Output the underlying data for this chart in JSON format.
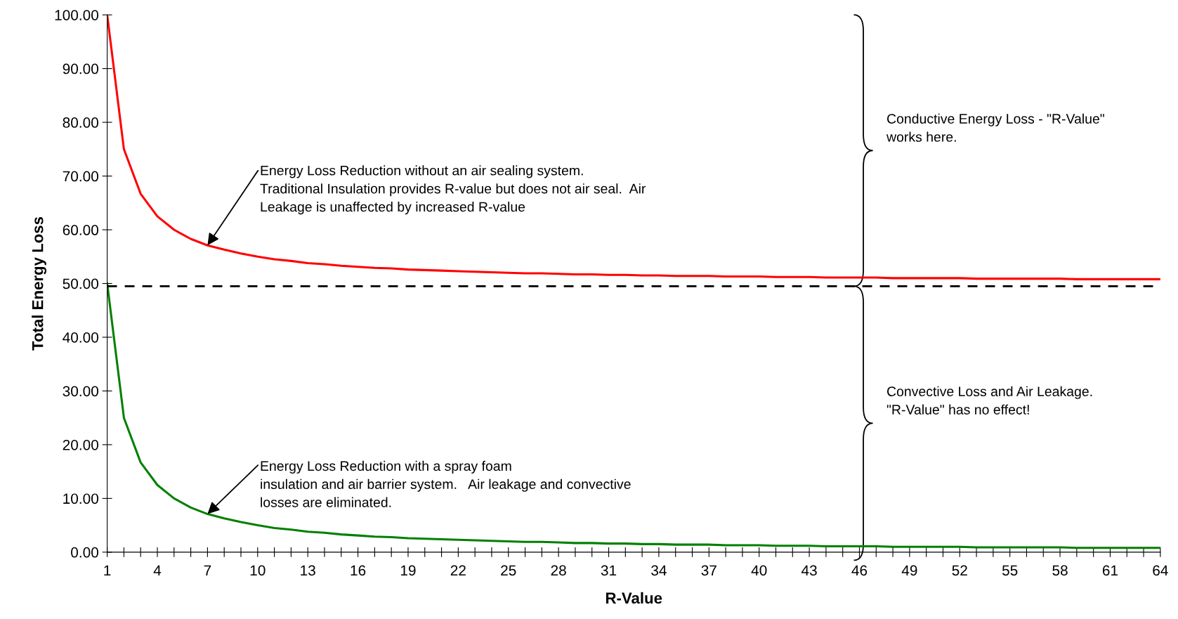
{
  "chart_data": {
    "type": "line",
    "xlabel": "R-Value",
    "ylabel": "Total Energy Loss",
    "x": [
      1,
      2,
      3,
      4,
      5,
      6,
      7,
      8,
      9,
      10,
      11,
      12,
      13,
      14,
      15,
      16,
      17,
      18,
      19,
      20,
      21,
      22,
      23,
      24,
      25,
      26,
      27,
      28,
      29,
      30,
      31,
      32,
      33,
      34,
      35,
      36,
      37,
      38,
      39,
      40,
      41,
      42,
      43,
      44,
      45,
      46,
      47,
      48,
      49,
      50,
      51,
      52,
      53,
      54,
      55,
      56,
      57,
      58,
      59,
      60,
      61,
      62,
      63,
      64
    ],
    "series": [
      {
        "color": "#ff0000",
        "values": [
          100,
          75,
          66.7,
          62.5,
          60,
          58.3,
          57.1,
          56.3,
          55.6,
          55,
          54.5,
          54.2,
          53.8,
          53.6,
          53.3,
          53.1,
          52.9,
          52.8,
          52.6,
          52.5,
          52.4,
          52.3,
          52.2,
          52.1,
          52,
          51.9,
          51.9,
          51.8,
          51.7,
          51.7,
          51.6,
          51.6,
          51.5,
          51.5,
          51.4,
          51.4,
          51.4,
          51.3,
          51.3,
          51.3,
          51.2,
          51.2,
          51.2,
          51.1,
          51.1,
          51.1,
          51.1,
          51,
          51,
          51,
          51,
          51,
          50.9,
          50.9,
          50.9,
          50.9,
          50.9,
          50.9,
          50.8,
          50.8,
          50.8,
          50.8,
          50.8,
          50.8
        ]
      },
      {
        "color": "#008000",
        "values": [
          50,
          25,
          16.7,
          12.5,
          10,
          8.3,
          7.1,
          6.3,
          5.6,
          5,
          4.5,
          4.2,
          3.8,
          3.6,
          3.3,
          3.1,
          2.9,
          2.8,
          2.6,
          2.5,
          2.4,
          2.3,
          2.2,
          2.1,
          2,
          1.9,
          1.9,
          1.8,
          1.7,
          1.7,
          1.6,
          1.6,
          1.5,
          1.5,
          1.4,
          1.4,
          1.4,
          1.3,
          1.3,
          1.3,
          1.2,
          1.2,
          1.2,
          1.1,
          1.1,
          1.1,
          1.1,
          1,
          1,
          1,
          1,
          1,
          0.9,
          0.9,
          0.9,
          0.9,
          0.9,
          0.9,
          0.8,
          0.8,
          0.8,
          0.8,
          0.8,
          0.8
        ]
      }
    ],
    "xlim": [
      1,
      64
    ],
    "xticks": [
      1,
      {
        "value": 2,
        "label": null
      },
      {
        "value": 3,
        "label": null
      },
      4,
      {
        "value": 5,
        "label": null
      },
      {
        "value": 6,
        "label": null
      },
      7,
      {
        "value": 8,
        "label": null
      },
      {
        "value": 9,
        "label": null
      },
      10,
      {
        "value": 11,
        "label": null
      },
      {
        "value": 12,
        "label": null
      },
      13,
      {
        "value": 14,
        "label": null
      },
      {
        "value": 15,
        "label": null
      },
      16,
      {
        "value": 17,
        "label": null
      },
      {
        "value": 18,
        "label": null
      },
      19,
      {
        "value": 20,
        "label": null
      },
      {
        "value": 21,
        "label": null
      },
      22,
      {
        "value": 23,
        "label": null
      },
      {
        "value": 24,
        "label": null
      },
      25,
      {
        "value": 26,
        "label": null
      },
      {
        "value": 27,
        "label": null
      },
      28,
      {
        "value": 29,
        "label": null
      },
      {
        "value": 30,
        "label": null
      },
      31,
      {
        "value": 32,
        "label": null
      },
      {
        "value": 33,
        "label": null
      },
      34,
      {
        "value": 35,
        "label": null
      },
      {
        "value": 36,
        "label": null
      },
      37,
      {
        "value": 38,
        "label": null
      },
      {
        "value": 39,
        "label": null
      },
      40,
      {
        "value": 41,
        "label": null
      },
      {
        "value": 42,
        "label": null
      },
      43,
      {
        "value": 44,
        "label": null
      },
      {
        "value": 45,
        "label": null
      },
      46,
      {
        "value": 47,
        "label": null
      },
      {
        "value": 48,
        "label": null
      },
      49,
      {
        "value": 50,
        "label": null
      },
      {
        "value": 51,
        "label": null
      },
      52,
      {
        "value": 53,
        "label": null
      },
      {
        "value": 54,
        "label": null
      },
      55,
      {
        "value": 56,
        "label": null
      },
      {
        "value": 57,
        "label": null
      },
      58,
      {
        "value": 59,
        "label": null
      },
      {
        "value": 60,
        "label": null
      },
      61,
      {
        "value": 62,
        "label": null
      },
      {
        "value": 63,
        "label": null
      },
      64
    ],
    "ylim": [
      0,
      100
    ],
    "yticks": [
      {
        "value": 0,
        "label": "0.00"
      },
      {
        "value": 10,
        "label": "10.00"
      },
      {
        "value": 20,
        "label": "20.00"
      },
      {
        "value": 30,
        "label": "30.00"
      },
      {
        "value": 40,
        "label": "40.00"
      },
      {
        "value": 50,
        "label": "50.00"
      },
      {
        "value": 60,
        "label": "60.00"
      },
      {
        "value": 70,
        "label": "70.00"
      },
      {
        "value": 80,
        "label": "80.00"
      },
      {
        "value": 90,
        "label": "90.00"
      },
      {
        "value": 100,
        "label": "100.00"
      }
    ],
    "ref_lines": [
      {
        "axis": "y",
        "value": 49.5,
        "color": "#000000",
        "line_style": "dashed"
      }
    ],
    "grid": false,
    "legend": false,
    "marker": "none",
    "line_style": "solid",
    "annotations": [
      {
        "text": "Energy Loss Reduction without an air sealing system.\nTraditional Insulation provides R-value but does not air seal.  Air\nLeakage is unaffected by increased R-value",
        "x": 7,
        "y": 57.1
      },
      {
        "text": "Energy Loss Reduction with a spray foam\ninsulation and air barrier system.   Air leakage and convective\nlosses are eliminated.",
        "x": 7,
        "y": 7.1
      },
      "Conductive Energy Loss - \"R-Value\"\nworks here.",
      "Convective Loss and Air Leakage.\n\"R-Value\" has no effect!"
    ]
  }
}
